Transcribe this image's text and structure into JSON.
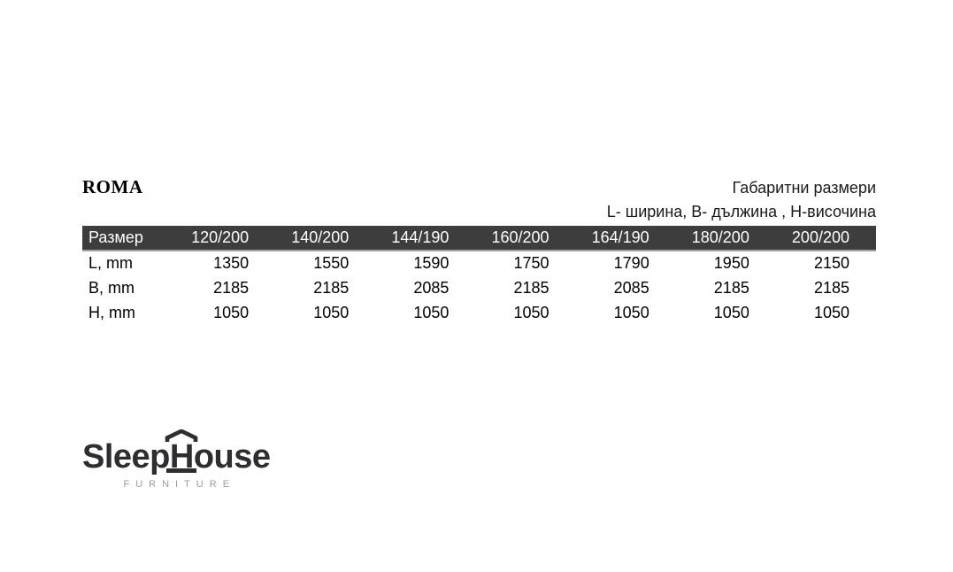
{
  "header": {
    "title": "ROMA",
    "caption_line1": "Габаритни размери",
    "caption_line2": "L- ширина, B- дължина , H-височина"
  },
  "table": {
    "header": [
      "Размер",
      "120/200",
      "140/200",
      "144/190",
      "160/200",
      "164/190",
      "180/200",
      "200/200"
    ],
    "rows": [
      {
        "label": "L, mm",
        "values": [
          "1350",
          "1550",
          "1590",
          "1750",
          "1790",
          "1950",
          "2150"
        ]
      },
      {
        "label": "B, mm",
        "values": [
          "2185",
          "2185",
          "2085",
          "2185",
          "2085",
          "2185",
          "2185"
        ]
      },
      {
        "label": "H, mm",
        "values": [
          "1050",
          "1050",
          "1050",
          "1050",
          "1050",
          "1050",
          "1050"
        ]
      }
    ],
    "header_bg": "#3d3d3d",
    "header_text_color": "#ffffff"
  },
  "logo": {
    "word_start": "Sleep",
    "word_h": "H",
    "word_end": "ouse",
    "tagline": "FURNITURE",
    "color": "#2d2d32",
    "tagline_color": "#9b9b9b"
  }
}
